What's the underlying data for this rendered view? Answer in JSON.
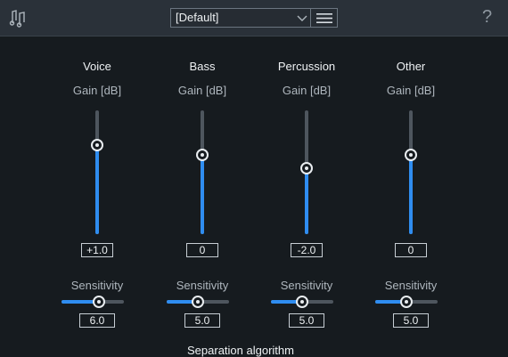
{
  "header": {
    "app_icon": "music-note-icon",
    "preset": {
      "value": "[Default]",
      "chevron_icon": "chevron-down-icon",
      "menu_icon": "hamburger-menu-icon"
    },
    "help_icon": "?"
  },
  "channels": [
    {
      "name": "Voice",
      "gain_label": "Gain [dB]",
      "gain_value": "+1.0",
      "gain_fraction": 0.72,
      "sensitivity_label": "Sensitivity",
      "sensitivity_value": "6.0",
      "sensitivity_fraction": 0.6
    },
    {
      "name": "Bass",
      "gain_label": "Gain [dB]",
      "gain_value": "0",
      "gain_fraction": 0.64,
      "sensitivity_label": "Sensitivity",
      "sensitivity_value": "5.0",
      "sensitivity_fraction": 0.5
    },
    {
      "name": "Percussion",
      "gain_label": "Gain [dB]",
      "gain_value": "-2.0",
      "gain_fraction": 0.53,
      "sensitivity_label": "Sensitivity",
      "sensitivity_value": "5.0",
      "sensitivity_fraction": 0.5
    },
    {
      "name": "Other",
      "gain_label": "Gain [dB]",
      "gain_value": "0",
      "gain_fraction": 0.64,
      "sensitivity_label": "Sensitivity",
      "sensitivity_value": "5.0",
      "sensitivity_fraction": 0.5
    }
  ],
  "footer": {
    "separation_label": "Separation algorithm"
  },
  "colors": {
    "accent": "#2f8df0",
    "background": "#161b1f",
    "topbar": "#2a3139",
    "track": "#4e565e"
  }
}
